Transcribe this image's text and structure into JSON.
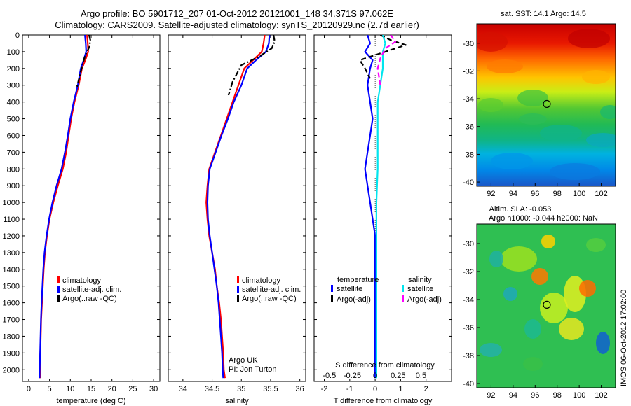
{
  "header": {
    "line1": "Argo profile: BO 5901712_207 01-Oct-2012 20121001_148 34.371S 97.062E",
    "line2": "Climatology: CARS2009. Satellite-adjusted climatology: synTS_20120929.nc (2.7d earlier)"
  },
  "side_label": "IMOS 06-Oct-2012 17:02:00",
  "colors": {
    "climatology": "#ff0000",
    "satellite": "#0000ff",
    "argo": "#000000",
    "sal_satellite": "#00e5ee",
    "sal_argo": "#ff00ff"
  },
  "chart_data": [
    {
      "id": "temperature",
      "type": "line",
      "xlabel": "temperature (deg C)",
      "ylabel": "",
      "xlim": [
        -1.5,
        31.5
      ],
      "ylim": [
        2070,
        0
      ],
      "x_ticks": [
        0,
        5,
        10,
        15,
        20,
        25,
        30
      ],
      "y_ticks": [
        0,
        100,
        200,
        300,
        400,
        500,
        600,
        700,
        800,
        900,
        1000,
        1100,
        1200,
        1300,
        1400,
        1500,
        1600,
        1700,
        1800,
        1900,
        2000
      ],
      "legend": [
        "climatology",
        "satellite-adj. clim.",
        "Argo(..raw -QC)"
      ],
      "legend_position": "lower-center",
      "series": [
        {
          "name": "climatology",
          "style": "solid",
          "points": [
            [
              14,
              0
            ],
            [
              14.2,
              50
            ],
            [
              14.3,
              100
            ],
            [
              13.6,
              150
            ],
            [
              12.8,
              200
            ],
            [
              12,
              300
            ],
            [
              11,
              400
            ],
            [
              10.2,
              500
            ],
            [
              9.6,
              600
            ],
            [
              9,
              700
            ],
            [
              8.2,
              800
            ],
            [
              7,
              900
            ],
            [
              5.9,
              1000
            ],
            [
              5,
              1100
            ],
            [
              4.4,
              1200
            ],
            [
              3.9,
              1300
            ],
            [
              3.6,
              1400
            ],
            [
              3.4,
              1500
            ],
            [
              3.2,
              1600
            ],
            [
              3.0,
              1700
            ],
            [
              2.9,
              1800
            ],
            [
              2.8,
              1900
            ],
            [
              2.7,
              2000
            ],
            [
              2.7,
              2050
            ]
          ]
        },
        {
          "name": "satellite-adj. clim.",
          "style": "solid",
          "points": [
            [
              13.5,
              0
            ],
            [
              13.7,
              50
            ],
            [
              13.8,
              100
            ],
            [
              13.2,
              150
            ],
            [
              12.5,
              200
            ],
            [
              11.8,
              300
            ],
            [
              10.8,
              400
            ],
            [
              10,
              500
            ],
            [
              9.4,
              600
            ],
            [
              8.7,
              700
            ],
            [
              7.9,
              800
            ],
            [
              6.7,
              900
            ],
            [
              5.7,
              1000
            ],
            [
              4.9,
              1100
            ],
            [
              4.3,
              1200
            ],
            [
              3.8,
              1300
            ],
            [
              3.5,
              1400
            ],
            [
              3.3,
              1500
            ],
            [
              3.1,
              1600
            ],
            [
              2.95,
              1700
            ],
            [
              2.85,
              1800
            ],
            [
              2.75,
              1900
            ],
            [
              2.65,
              2000
            ],
            [
              2.6,
              2050
            ]
          ]
        },
        {
          "name": "Argo(..raw -QC)",
          "style": "dashdot",
          "points": [
            [
              14.5,
              0
            ],
            [
              14.8,
              30
            ],
            [
              14.6,
              70
            ],
            [
              13.6,
              120
            ],
            [
              12.9,
              180
            ],
            [
              12.2,
              250
            ],
            [
              11.5,
              320
            ]
          ]
        }
      ]
    },
    {
      "id": "salinity",
      "type": "line",
      "xlabel": "salinity",
      "ylabel": "",
      "xlim": [
        33.75,
        36.1
      ],
      "ylim": [
        2070,
        0
      ],
      "x_ticks": [
        34,
        34.5,
        35,
        35.5,
        36
      ],
      "legend": [
        "climatology",
        "satellite-adj. clim.",
        "Argo(..raw -QC)"
      ],
      "legend_position": "lower-right",
      "annotation": [
        "Argo UK",
        "PI: Jon Turton"
      ],
      "series": [
        {
          "name": "climatology",
          "style": "solid",
          "points": [
            [
              35.4,
              0
            ],
            [
              35.38,
              50
            ],
            [
              35.35,
              100
            ],
            [
              35.2,
              150
            ],
            [
              35.05,
              200
            ],
            [
              34.95,
              300
            ],
            [
              34.85,
              400
            ],
            [
              34.75,
              500
            ],
            [
              34.65,
              600
            ],
            [
              34.55,
              700
            ],
            [
              34.45,
              800
            ],
            [
              34.42,
              900
            ],
            [
              34.4,
              1000
            ],
            [
              34.42,
              1100
            ],
            [
              34.45,
              1200
            ],
            [
              34.5,
              1300
            ],
            [
              34.55,
              1400
            ],
            [
              34.58,
              1500
            ],
            [
              34.62,
              1600
            ],
            [
              34.65,
              1700
            ],
            [
              34.67,
              1800
            ],
            [
              34.69,
              1900
            ],
            [
              34.7,
              2000
            ],
            [
              34.72,
              2050
            ]
          ]
        },
        {
          "name": "satellite-adj. clim.",
          "style": "solid",
          "points": [
            [
              35.48,
              0
            ],
            [
              35.47,
              50
            ],
            [
              35.42,
              100
            ],
            [
              35.25,
              150
            ],
            [
              35.1,
              200
            ],
            [
              35,
              300
            ],
            [
              34.87,
              400
            ],
            [
              34.77,
              500
            ],
            [
              34.66,
              600
            ],
            [
              34.56,
              700
            ],
            [
              34.46,
              800
            ],
            [
              34.43,
              900
            ],
            [
              34.42,
              1000
            ],
            [
              34.43,
              1100
            ],
            [
              34.46,
              1200
            ],
            [
              34.5,
              1300
            ],
            [
              34.54,
              1400
            ],
            [
              34.58,
              1500
            ],
            [
              34.61,
              1600
            ],
            [
              34.63,
              1700
            ],
            [
              34.65,
              1800
            ],
            [
              34.67,
              1900
            ],
            [
              34.68,
              2000
            ],
            [
              34.69,
              2050
            ]
          ]
        },
        {
          "name": "Argo(..raw -QC)",
          "style": "dashdot",
          "points": [
            [
              35.55,
              0
            ],
            [
              35.57,
              40
            ],
            [
              35.52,
              80
            ],
            [
              35.3,
              130
            ],
            [
              35.0,
              180
            ],
            [
              34.85,
              280
            ],
            [
              34.78,
              360
            ]
          ]
        }
      ]
    },
    {
      "id": "difference",
      "type": "line",
      "xlabel": "T difference from climatology",
      "xlabel_top": "S difference from climatology",
      "ylabel": "",
      "xlim": [
        -2.4,
        3.0
      ],
      "ylim": [
        2070,
        0
      ],
      "x_ticks": [
        -2,
        -1,
        0,
        1,
        2
      ],
      "top_ticks": [
        "-0.5",
        "-0.25",
        "0",
        "0.25",
        "0.5"
      ],
      "legend": [
        "temperature",
        "satellite",
        "Argo(-adj)",
        "salinity",
        "satellite",
        "Argo(-adj)"
      ],
      "legend_position": "lower-center",
      "series": [
        {
          "name": "temperature satellite",
          "style": "solid",
          "points": [
            [
              -0.3,
              0
            ],
            [
              -0.2,
              50
            ],
            [
              -0.4,
              100
            ],
            [
              -0.1,
              150
            ],
            [
              -0.2,
              200
            ],
            [
              -0.3,
              300
            ],
            [
              -0.2,
              400
            ],
            [
              -0.1,
              500
            ],
            [
              -0.2,
              600
            ],
            [
              -0.3,
              700
            ],
            [
              -0.4,
              800
            ],
            [
              -0.3,
              900
            ],
            [
              -0.2,
              1000
            ],
            [
              -0.1,
              1100
            ],
            [
              0,
              1200
            ],
            [
              0,
              1400
            ],
            [
              0,
              1600
            ],
            [
              0,
              1800
            ],
            [
              0,
              2050
            ]
          ]
        },
        {
          "name": "temperature Argo(-adj)",
          "style": "dashed",
          "points": [
            [
              0.2,
              0
            ],
            [
              0.6,
              30
            ],
            [
              1.2,
              60
            ],
            [
              0.4,
              100
            ],
            [
              -0.6,
              150
            ],
            [
              -0.4,
              200
            ],
            [
              -0.2,
              260
            ]
          ]
        },
        {
          "name": "salinity satellite",
          "style": "solid",
          "points": [
            [
              0.3,
              0
            ],
            [
              0.4,
              50
            ],
            [
              0.3,
              100
            ],
            [
              0.3,
              200
            ],
            [
              0.2,
              300
            ],
            [
              0.1,
              400
            ],
            [
              0.1,
              600
            ],
            [
              0.1,
              800
            ],
            [
              0.05,
              1000
            ],
            [
              0.05,
              1400
            ],
            [
              0.05,
              2050
            ]
          ]
        },
        {
          "name": "salinity Argo(-adj)",
          "style": "dashed",
          "points": [
            [
              0.6,
              0
            ],
            [
              0.8,
              40
            ],
            [
              0.4,
              80
            ],
            [
              0.2,
              140
            ],
            [
              0.1,
              200
            ],
            [
              0.2,
              300
            ]
          ]
        }
      ]
    },
    {
      "id": "sst_map",
      "type": "heatmap",
      "title": "sat. SST: 14.1  Argo: 14.5",
      "x_ticks": [
        92,
        94,
        96,
        98,
        100,
        102
      ],
      "y_ticks": [
        -30,
        -32,
        -34,
        -36,
        -38,
        -40
      ],
      "xlim": [
        90.7,
        103.3
      ],
      "ylim": [
        -40.3,
        -28.6
      ],
      "marker": [
        97.06,
        -34.37
      ]
    },
    {
      "id": "sla_map",
      "type": "heatmap",
      "title_lines": [
        "Altim. SLA: -0.053",
        "Argo h1000: -0.044 h2000: NaN"
      ],
      "x_ticks": [
        92,
        94,
        96,
        98,
        100,
        102
      ],
      "y_ticks": [
        -30,
        -32,
        -34,
        -36,
        -38,
        -40
      ],
      "xlim": [
        90.7,
        103.3
      ],
      "ylim": [
        -40.3,
        -28.6
      ],
      "marker": [
        97.06,
        -34.37
      ]
    }
  ]
}
